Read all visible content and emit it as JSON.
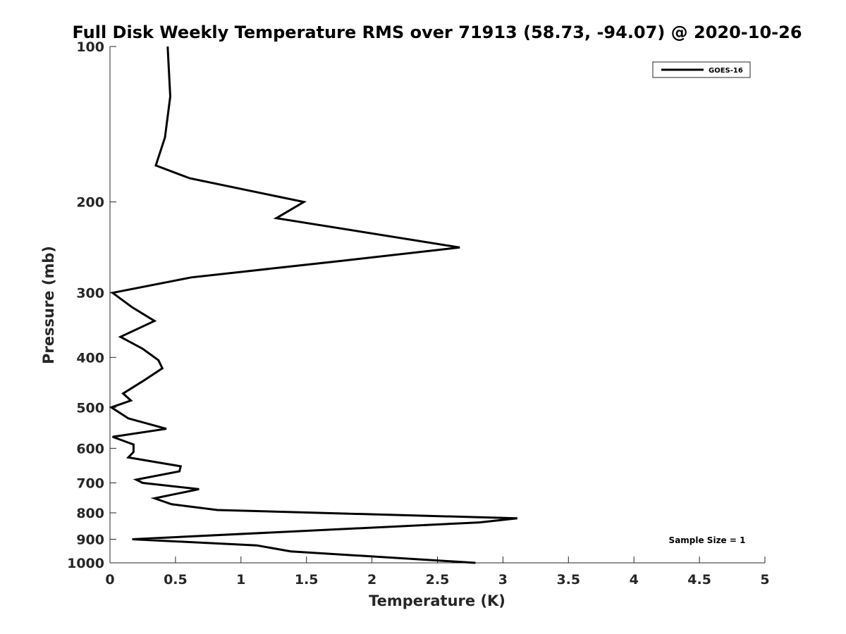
{
  "chart_data": {
    "type": "line",
    "title": "Full Disk Weekly Temperature RMS over 71913 (58.73, -94.07) @ 2020-10-26",
    "xlabel": "Temperature (K)",
    "ylabel": "Pressure (mb)",
    "xlim": [
      0,
      5
    ],
    "ylim": [
      100,
      1000
    ],
    "y_scale": "log",
    "y_reversed": true,
    "x_ticks": [
      "0",
      "0.5",
      "1",
      "1.5",
      "2",
      "2.5",
      "3",
      "3.5",
      "4",
      "4.5",
      "5"
    ],
    "y_ticks": [
      "100",
      "200",
      "300",
      "400",
      "500",
      "600",
      "700",
      "800",
      "900",
      "1000"
    ],
    "legend_position": "top-right",
    "grid": false,
    "series": [
      {
        "name": "GOES-16",
        "color": "#000000",
        "points": [
          [
            0.44,
            100
          ],
          [
            0.46,
            125
          ],
          [
            0.42,
            150
          ],
          [
            0.35,
            170
          ],
          [
            0.61,
            180
          ],
          [
            1.48,
            200
          ],
          [
            1.27,
            215
          ],
          [
            2.67,
            245
          ],
          [
            1.77,
            260
          ],
          [
            0.62,
            280
          ],
          [
            0.02,
            300
          ],
          [
            0.17,
            320
          ],
          [
            0.34,
            340
          ],
          [
            0.08,
            365
          ],
          [
            0.25,
            385
          ],
          [
            0.37,
            405
          ],
          [
            0.4,
            420
          ],
          [
            0.25,
            445
          ],
          [
            0.1,
            470
          ],
          [
            0.16,
            485
          ],
          [
            0.01,
            500
          ],
          [
            0.14,
            525
          ],
          [
            0.43,
            550
          ],
          [
            0.02,
            570
          ],
          [
            0.18,
            590
          ],
          [
            0.18,
            610
          ],
          [
            0.14,
            625
          ],
          [
            0.54,
            650
          ],
          [
            0.53,
            665
          ],
          [
            0.2,
            690
          ],
          [
            0.25,
            700
          ],
          [
            0.68,
            720
          ],
          [
            0.34,
            750
          ],
          [
            0.47,
            770
          ],
          [
            0.82,
            790
          ],
          [
            3.11,
            820
          ],
          [
            2.82,
            835
          ],
          [
            0.17,
            900
          ],
          [
            1.12,
            925
          ],
          [
            1.38,
            950
          ],
          [
            2.79,
            1000
          ]
        ]
      }
    ],
    "annotations": [
      "Sample Size = 1"
    ]
  }
}
